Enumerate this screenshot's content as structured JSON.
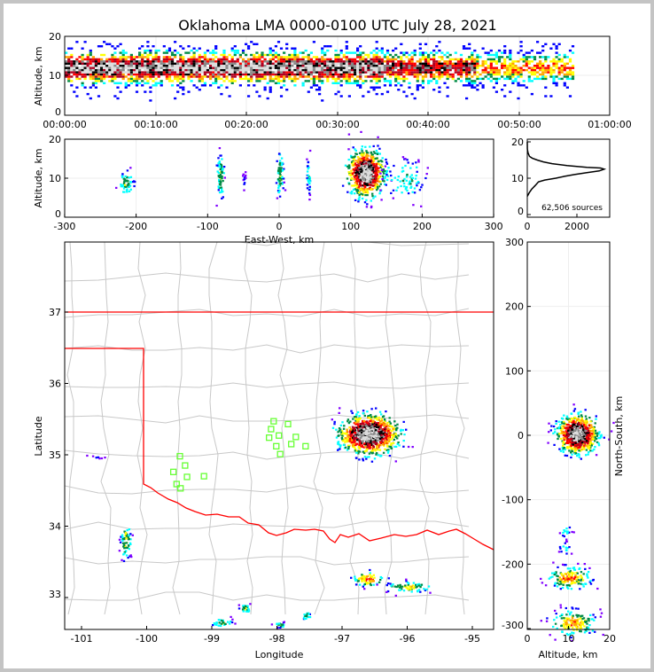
{
  "title": "Oklahoma LMA 0000-0100 UTC July 28, 2021",
  "colors": {
    "ok_border": "#ff0000",
    "county": "#c8c8c8",
    "station": "#66ff33",
    "cmap": [
      "#0000ff",
      "#00ffff",
      "#008b45",
      "#ffff00",
      "#ffa500",
      "#ff0000",
      "#b00020",
      "#000000",
      "#888888",
      "#dddddd"
    ]
  },
  "chart_data": [
    {
      "type": "heatmap",
      "name": "time-altitude",
      "xlabel": "",
      "ylabel": "Altitude, km",
      "ylim": [
        0,
        20
      ],
      "xticks": [
        "00:00:00",
        "00:10:00",
        "00:20:00",
        "00:30:00",
        "00:40:00",
        "00:50:00",
        "01:00:00"
      ],
      "yticks": [
        "0",
        "10",
        "20"
      ],
      "activity_minutes": [
        0,
        56
      ],
      "core_altitude_km": 12
    },
    {
      "type": "heatmap",
      "name": "eastwest-altitude",
      "xlabel": "East-West, km",
      "ylabel": "Altitude, km",
      "xlim": [
        -300,
        300
      ],
      "ylim": [
        0,
        20
      ],
      "xticks": [
        "-300",
        "-200",
        "-100",
        "0",
        "100",
        "200",
        "300"
      ],
      "yticks": [
        "0",
        "10",
        "20"
      ]
    },
    {
      "type": "line",
      "name": "altitude-histogram",
      "annotation": "62,506 sources",
      "xlim": [
        0,
        2600
      ],
      "ylim": [
        0,
        20
      ],
      "xticks": [
        "0",
        "2000"
      ],
      "yticks": [
        "0",
        "10",
        "20"
      ],
      "altitude_km": [
        5,
        6,
        7,
        8,
        9,
        9.5,
        10,
        10.5,
        11,
        11.5,
        12,
        12.5,
        12.8,
        13,
        13.5,
        14,
        14.5,
        15,
        15.5,
        16,
        17,
        18,
        20
      ],
      "count": [
        0,
        80,
        180,
        320,
        450,
        700,
        1150,
        1500,
        1900,
        2400,
        2900,
        3100,
        2950,
        2400,
        1600,
        1000,
        650,
        400,
        200,
        90,
        30,
        5,
        0
      ]
    },
    {
      "type": "scatter",
      "name": "plan-view",
      "xlabel": "Longitude",
      "ylabel": "Latitude",
      "xlim": [
        -101.25,
        -94.6
      ],
      "ylim": [
        32.55,
        37.95
      ],
      "xticks": [
        "-101",
        "-100",
        "-99",
        "-98",
        "-97",
        "-96",
        "-95"
      ],
      "yticks": [
        "33",
        "34",
        "35",
        "36",
        "37"
      ],
      "stations": [
        [
          -99.49,
          34.98
        ],
        [
          -99.41,
          34.85
        ],
        [
          -99.59,
          34.76
        ],
        [
          -99.54,
          34.59
        ],
        [
          -99.48,
          34.53
        ],
        [
          -99.38,
          34.69
        ],
        [
          -99.12,
          34.7
        ],
        [
          -98.05,
          35.47
        ],
        [
          -97.83,
          35.43
        ],
        [
          -98.09,
          35.36
        ],
        [
          -97.97,
          35.27
        ],
        [
          -98.12,
          35.24
        ],
        [
          -97.71,
          35.25
        ],
        [
          -98.01,
          35.12
        ],
        [
          -97.78,
          35.15
        ],
        [
          -97.95,
          35.01
        ],
        [
          -97.56,
          35.12
        ]
      ],
      "clusters": [
        {
          "lon": -96.6,
          "lat": 35.3,
          "slon": 0.22,
          "slat": 0.13,
          "n": 900,
          "peak": 1.0
        },
        {
          "lon": -100.33,
          "lat": 33.8,
          "slon": 0.04,
          "slat": 0.12,
          "n": 60,
          "peak": 0.35
        },
        {
          "lon": -100.76,
          "lat": 34.98,
          "slon": 0.05,
          "slat": 0.01,
          "n": 8,
          "peak": 0.1
        },
        {
          "lon": -96.6,
          "lat": 33.27,
          "slon": 0.12,
          "slat": 0.05,
          "n": 70,
          "peak": 0.5
        },
        {
          "lon": -96.0,
          "lat": 33.16,
          "slon": 0.18,
          "slat": 0.04,
          "n": 70,
          "peak": 0.35
        },
        {
          "lon": -98.5,
          "lat": 32.86,
          "slon": 0.04,
          "slat": 0.03,
          "n": 25,
          "peak": 0.3
        },
        {
          "lon": -98.85,
          "lat": 32.66,
          "slon": 0.08,
          "slat": 0.03,
          "n": 30,
          "peak": 0.3
        },
        {
          "lon": -97.97,
          "lat": 32.63,
          "slon": 0.05,
          "slat": 0.02,
          "n": 20,
          "peak": 0.3
        },
        {
          "lon": -97.56,
          "lat": 32.75,
          "slon": 0.03,
          "slat": 0.03,
          "n": 20,
          "peak": 0.3
        }
      ]
    },
    {
      "type": "heatmap",
      "name": "altitude-northsouth",
      "xlabel": "Altitude, km",
      "ylabel": "North-South, km",
      "xlim": [
        0,
        20
      ],
      "ylim": [
        -300,
        300
      ],
      "xticks": [
        "0",
        "10",
        "20"
      ],
      "yticks": [
        "-300",
        "-200",
        "-100",
        "0",
        "100",
        "200",
        "300"
      ],
      "clusters": [
        {
          "alt": 12,
          "ns": 3,
          "salt": 2.3,
          "sns": 14,
          "n": 700,
          "peak": 1.0
        },
        {
          "alt": 10,
          "ns": -220,
          "salt": 2.5,
          "sns": 8,
          "n": 160,
          "peak": 0.5
        },
        {
          "alt": 11,
          "ns": -290,
          "salt": 2.6,
          "sns": 10,
          "n": 160,
          "peak": 0.45
        },
        {
          "alt": 9,
          "ns": -148,
          "salt": 0.8,
          "sns": 5,
          "n": 15,
          "peak": 0.15
        },
        {
          "alt": 9,
          "ns": -175,
          "salt": 0.9,
          "sns": 6,
          "n": 15,
          "peak": 0.15
        }
      ]
    },
    {
      "ew_clusters": [
        {
          "ew": 120,
          "alt": 11.5,
          "sew": 12,
          "salt": 2.8,
          "n": 700,
          "peak": 1.0
        },
        {
          "ew": -215,
          "alt": 9,
          "sew": 5,
          "salt": 1.4,
          "n": 50,
          "peak": 0.3
        },
        {
          "ew": -83,
          "alt": 11,
          "sew": 2.5,
          "salt": 2.8,
          "n": 70,
          "peak": 0.3
        },
        {
          "ew": 0,
          "alt": 11,
          "sew": 2.5,
          "salt": 2.8,
          "n": 70,
          "peak": 0.3
        },
        {
          "ew": 40,
          "alt": 10.5,
          "sew": 1.5,
          "salt": 2.5,
          "n": 35,
          "peak": 0.2
        },
        {
          "ew": -50,
          "alt": 10,
          "sew": 1,
          "salt": 1.8,
          "n": 15,
          "peak": 0.1
        },
        {
          "ew": 175,
          "alt": 10,
          "sew": 15,
          "salt": 2.5,
          "n": 80,
          "peak": 0.2
        }
      ]
    }
  ]
}
